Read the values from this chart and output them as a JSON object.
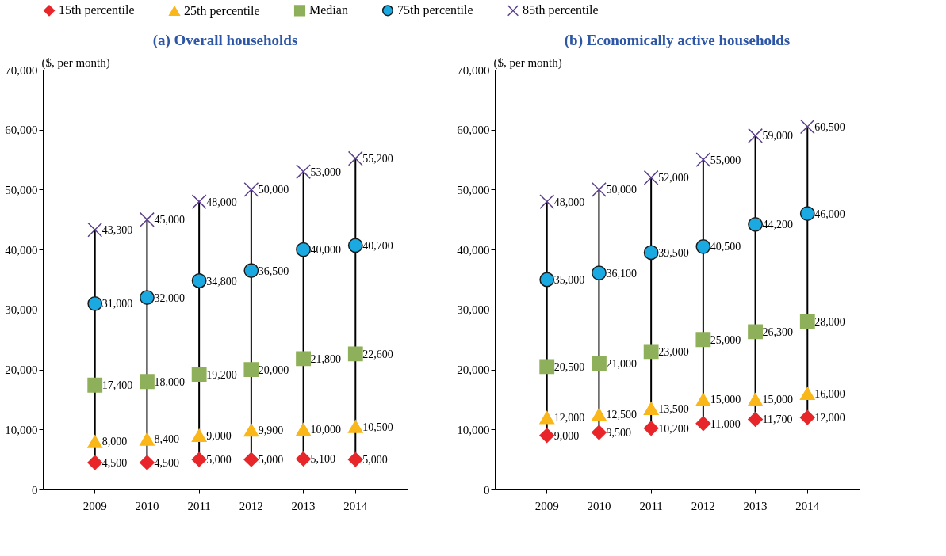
{
  "chart_data": [
    {
      "type": "scatter",
      "title": "(a) Overall households",
      "ylabel": "($, per month)",
      "categories": [
        "2009",
        "2010",
        "2011",
        "2012",
        "2013",
        "2014"
      ],
      "ylim": [
        0,
        70000
      ],
      "yticks": [
        0,
        {
          "value": 10000,
          "label": "10,000"
        },
        {
          "value": 20000,
          "label": "20,000"
        },
        {
          "value": 30000,
          "label": "30,000"
        },
        {
          "value": 40000,
          "label": "40,000"
        },
        {
          "value": 50000,
          "label": "50,000"
        },
        {
          "value": 60000,
          "label": "60,000"
        },
        {
          "value": 70000,
          "label": "70,000"
        }
      ],
      "legend": "top",
      "series": [
        {
          "name": "15th percentile",
          "color": "#e8262a",
          "marker": "diamond",
          "values": [
            4500,
            4500,
            5000,
            5000,
            5100,
            5000
          ],
          "value_labels": [
            "4,500",
            "4,500",
            "5,000",
            "5,000",
            "5,100",
            "5,000"
          ]
        },
        {
          "name": "25th percentile",
          "color": "#f9b71a",
          "marker": "triangle",
          "values": [
            8000,
            8400,
            9000,
            9900,
            10000,
            10500
          ],
          "value_labels": [
            "8,000",
            "8,400",
            "9,000",
            "9,900",
            "10,000",
            "10,500"
          ]
        },
        {
          "name": "Median",
          "color": "#8fb05a",
          "marker": "square",
          "values": [
            17400,
            18000,
            19200,
            20000,
            21800,
            22600
          ],
          "value_labels": [
            "17,400",
            "18,000",
            "19,200",
            "20,000",
            "21,800",
            "22,600"
          ]
        },
        {
          "name": "75th percentile",
          "color": "#1ba9e1",
          "marker": "circle",
          "values": [
            31000,
            32000,
            34800,
            36500,
            40000,
            40700
          ],
          "value_labels": [
            "31,000",
            "32,000",
            "34,800",
            "36,500",
            "40,000",
            "40,700"
          ]
        },
        {
          "name": "85th percentile",
          "color": "#5b3f8c",
          "marker": "cross",
          "values": [
            43300,
            45000,
            48000,
            50000,
            53000,
            55200
          ],
          "value_labels": [
            "43,300",
            "45,000",
            "48,000",
            "50,000",
            "53,000",
            "55,200"
          ]
        }
      ]
    },
    {
      "type": "scatter",
      "title": "(b) Economically active households",
      "ylabel": "($, per month)",
      "categories": [
        "2009",
        "2010",
        "2011",
        "2012",
        "2013",
        "2014"
      ],
      "ylim": [
        0,
        70000
      ],
      "yticks": [
        0,
        {
          "value": 10000,
          "label": "10,000"
        },
        {
          "value": 20000,
          "label": "20,000"
        },
        {
          "value": 30000,
          "label": "30,000"
        },
        {
          "value": 40000,
          "label": "40,000"
        },
        {
          "value": 50000,
          "label": "50,000"
        },
        {
          "value": 60000,
          "label": "60,000"
        },
        {
          "value": 70000,
          "label": "70,000"
        }
      ],
      "legend": "top",
      "series": [
        {
          "name": "15th percentile",
          "color": "#e8262a",
          "marker": "diamond",
          "values": [
            9000,
            9500,
            10200,
            11000,
            11700,
            12000
          ],
          "value_labels": [
            "9,000",
            "9,500",
            "10,200",
            "11,000",
            "11,700",
            "12,000"
          ]
        },
        {
          "name": "25th percentile",
          "color": "#f9b71a",
          "marker": "triangle",
          "values": [
            12000,
            12500,
            13500,
            15000,
            15000,
            16000
          ],
          "value_labels": [
            "12,000",
            "12,500",
            "13,500",
            "15,000",
            "15,000",
            "16,000"
          ]
        },
        {
          "name": "Median",
          "color": "#8fb05a",
          "marker": "square",
          "values": [
            20500,
            21000,
            23000,
            25000,
            26300,
            28000
          ],
          "value_labels": [
            "20,500",
            "21,000",
            "23,000",
            "25,000",
            "26,300",
            "28,000"
          ]
        },
        {
          "name": "75th percentile",
          "color": "#1ba9e1",
          "marker": "circle",
          "values": [
            35000,
            36100,
            39500,
            40500,
            44200,
            46000
          ],
          "value_labels": [
            "35,000",
            "36,100",
            "39,500",
            "40,500",
            "44,200",
            "46,000"
          ]
        },
        {
          "name": "85th percentile",
          "color": "#5b3f8c",
          "marker": "cross",
          "values": [
            48000,
            50000,
            52000,
            55000,
            59000,
            60500
          ],
          "value_labels": [
            "48,000",
            "50,000",
            "52,000",
            "55,000",
            "59,000",
            "60,500"
          ]
        }
      ]
    }
  ]
}
